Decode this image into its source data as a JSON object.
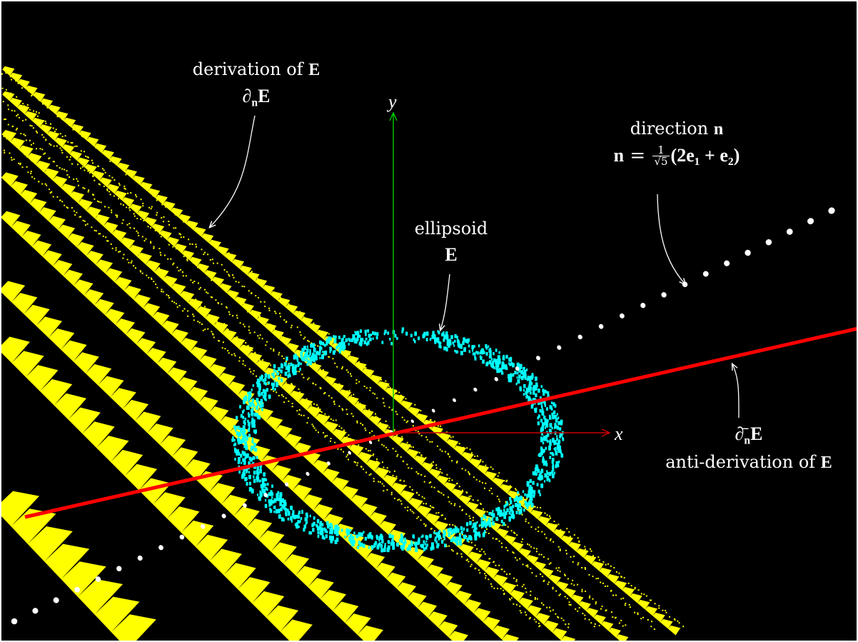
{
  "colors": {
    "background": "#000000",
    "frame": "#ffffff",
    "derivation": "#ffff00",
    "ellipsoid": "#00ffff",
    "direction_points": "#ffffff",
    "anti_derivation": "#ff0000",
    "axis_x": "#cc0000",
    "axis_y": "#00cc00"
  },
  "axes": {
    "x_label": "x",
    "y_label": "y"
  },
  "labels": {
    "derivation_title": "derivation of",
    "derivation_symbol": "E",
    "derivation_op": "∂",
    "derivation_sub": "n",
    "ellipsoid_title": "ellipsoid",
    "ellipsoid_symbol": "E",
    "direction_title": "direction",
    "direction_symbol": "n",
    "direction_formula_lhs": "n",
    "direction_formula_frac_num": "1",
    "direction_formula_frac_den": "√5",
    "direction_formula_rhs": "(2e₁ + e₂)",
    "anti_op": "∂̄",
    "anti_sub": "n",
    "anti_symbol": "E",
    "anti_title": "anti-derivation of",
    "anti_title_symbol": "E"
  }
}
